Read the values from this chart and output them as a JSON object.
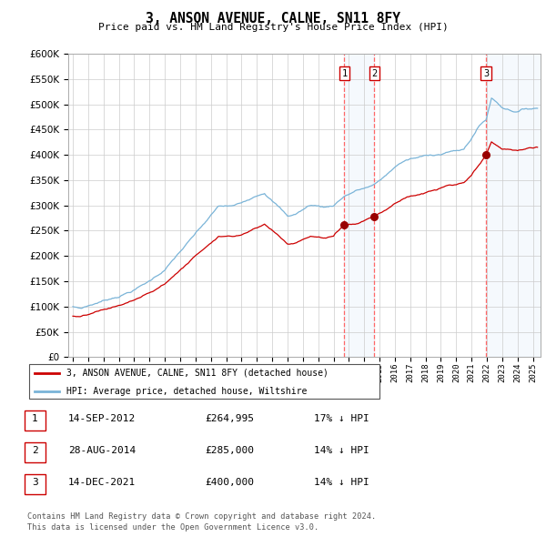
{
  "title": "3, ANSON AVENUE, CALNE, SN11 8FY",
  "subtitle": "Price paid vs. HM Land Registry's House Price Index (HPI)",
  "footer1": "Contains HM Land Registry data © Crown copyright and database right 2024.",
  "footer2": "This data is licensed under the Open Government Licence v3.0.",
  "legend_entry1": "3, ANSON AVENUE, CALNE, SN11 8FY (detached house)",
  "legend_entry2": "HPI: Average price, detached house, Wiltshire",
  "transactions": [
    {
      "num": 1,
      "date": "14-SEP-2012",
      "price": 264995,
      "pct": "17%",
      "dir": "↓",
      "year": 2012.71
    },
    {
      "num": 2,
      "date": "28-AUG-2014",
      "price": 285000,
      "pct": "14%",
      "dir": "↓",
      "year": 2014.66
    },
    {
      "num": 3,
      "date": "14-DEC-2021",
      "price": 400000,
      "pct": "14%",
      "dir": "↓",
      "year": 2021.95
    }
  ],
  "hpi_color": "#7ab4d8",
  "price_color": "#cc0000",
  "marker_color": "#990000",
  "shade_color": "#ddeeff",
  "ylim": [
    0,
    600000
  ],
  "yticks": [
    0,
    50000,
    100000,
    150000,
    200000,
    250000,
    300000,
    350000,
    400000,
    450000,
    500000,
    550000,
    600000
  ],
  "xlim_start": 1994.7,
  "xlim_end": 2025.5
}
